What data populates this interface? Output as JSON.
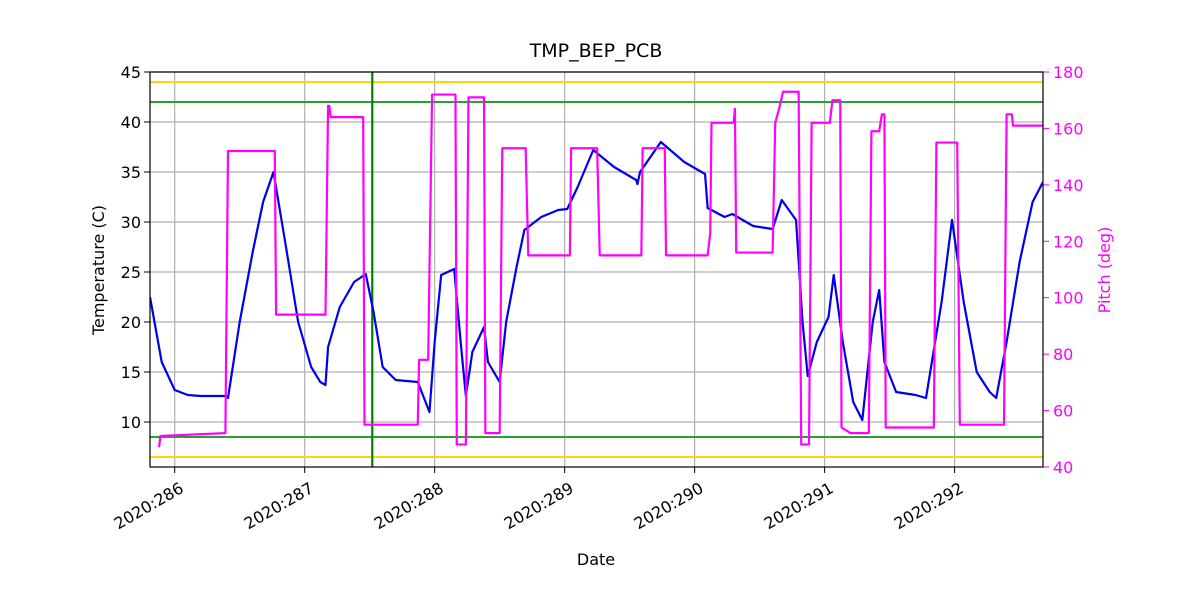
{
  "chart_data": {
    "type": "line",
    "title": "TMP_BEP_PCB",
    "xlabel": "Date",
    "ylabel": "Temperature (C)",
    "y2label": "Pitch (deg)",
    "xlim": [
      285.81,
      292.68
    ],
    "ylim": [
      5.5,
      45
    ],
    "y2lim": [
      40,
      180
    ],
    "xticks": [
      {
        "value": 286,
        "label": "2020:286"
      },
      {
        "value": 287,
        "label": "2020:287"
      },
      {
        "value": 288,
        "label": "2020:288"
      },
      {
        "value": 289,
        "label": "2020:289"
      },
      {
        "value": 290,
        "label": "2020:290"
      },
      {
        "value": 291,
        "label": "2020:291"
      },
      {
        "value": 292,
        "label": "2020:292"
      }
    ],
    "yticks": [
      10,
      15,
      20,
      25,
      30,
      35,
      40,
      45
    ],
    "y2ticks": [
      40,
      60,
      80,
      100,
      120,
      140,
      160,
      180
    ],
    "grid": true,
    "hlines": [
      {
        "value": 44,
        "color": "#ffd700"
      },
      {
        "value": 6.5,
        "color": "#ffd700"
      },
      {
        "value": 42,
        "color": "#2ca02c"
      },
      {
        "value": 8.5,
        "color": "#2ca02c"
      }
    ],
    "vline": {
      "value": 287.52,
      "color": "#008000"
    },
    "series": [
      {
        "name": "TMP_BEP_PCB",
        "color": "#0000ee",
        "axis": "y",
        "x": [
          285.81,
          285.9,
          286.0,
          286.1,
          286.2,
          286.4,
          286.41,
          286.5,
          286.6,
          286.68,
          286.76,
          286.85,
          286.95,
          287.05,
          287.12,
          287.16,
          287.18,
          287.27,
          287.38,
          287.47,
          287.53,
          287.6,
          287.7,
          287.87,
          287.96,
          288.0,
          288.05,
          288.15,
          288.2,
          288.24,
          288.29,
          288.38,
          288.41,
          288.5,
          288.55,
          288.63,
          288.69,
          288.82,
          288.95,
          289.02,
          289.1,
          289.22,
          289.38,
          289.55,
          289.56,
          289.58,
          289.74,
          289.92,
          290.08,
          290.1,
          290.23,
          290.29,
          290.45,
          290.6,
          290.67,
          290.78,
          290.83,
          290.87,
          290.94,
          291.03,
          291.07,
          291.14,
          291.22,
          291.29,
          291.37,
          291.42,
          291.46,
          291.55,
          291.7,
          291.78,
          291.9,
          291.98,
          292.07,
          292.17,
          292.27,
          292.32,
          292.4,
          292.5,
          292.6,
          292.68
        ],
        "values": [
          22.5,
          16,
          13.2,
          12.7,
          12.6,
          12.6,
          12.4,
          20,
          27,
          32,
          35,
          28,
          20,
          15.5,
          14,
          13.7,
          17.5,
          21.5,
          24,
          24.8,
          21,
          15.5,
          14.2,
          14,
          11,
          18,
          24.7,
          25.3,
          18,
          12.6,
          17,
          19.5,
          16,
          14,
          20,
          25.5,
          29.2,
          30.5,
          31.2,
          31.3,
          33.5,
          37.2,
          35.5,
          34.2,
          33.8,
          35,
          38,
          36,
          34.8,
          31.4,
          30.5,
          30.8,
          29.6,
          29.3,
          32.2,
          30.2,
          20,
          14.6,
          18,
          20.5,
          24.7,
          18,
          12,
          10.2,
          20,
          23.2,
          16,
          13,
          12.7,
          12.4,
          22,
          30.2,
          22,
          15,
          13,
          12.4,
          18,
          26,
          32,
          34
        ]
      },
      {
        "name": "Pitch",
        "color": "#ff00ff",
        "axis": "y2",
        "x": [
          285.88,
          285.89,
          286.39,
          286.41,
          286.77,
          286.78,
          287.16,
          287.18,
          287.19,
          287.2,
          287.45,
          287.46,
          287.87,
          287.88,
          287.95,
          287.98,
          288.16,
          288.17,
          288.24,
          288.26,
          288.38,
          288.39,
          288.5,
          288.52,
          288.7,
          288.72,
          289.04,
          289.05,
          289.25,
          289.27,
          289.59,
          289.6,
          289.77,
          289.78,
          290.1,
          290.12,
          290.13,
          290.3,
          290.31,
          290.32,
          290.6,
          290.62,
          290.65,
          290.68,
          290.8,
          290.82,
          290.88,
          290.9,
          291.04,
          291.06,
          291.12,
          291.13,
          291.2,
          291.21,
          291.34,
          291.36,
          291.42,
          291.44,
          291.46,
          291.47,
          291.84,
          291.86,
          292.02,
          292.04,
          292.38,
          292.4,
          292.44,
          292.45,
          292.68
        ],
        "values": [
          47,
          51,
          52,
          152,
          152,
          94,
          94,
          168,
          168,
          164,
          164,
          55,
          55,
          78,
          78,
          172,
          172,
          48,
          48,
          171,
          171,
          52,
          52,
          153,
          153,
          115,
          115,
          153,
          153,
          115,
          115,
          153,
          153,
          115,
          115,
          123,
          162,
          162,
          167,
          116,
          116,
          162,
          167,
          173,
          173,
          48,
          48,
          162,
          162,
          170,
          170,
          54,
          52,
          52,
          52,
          159,
          159,
          165,
          165,
          54,
          54,
          155,
          155,
          55,
          55,
          165,
          165,
          161,
          161
        ]
      }
    ]
  }
}
